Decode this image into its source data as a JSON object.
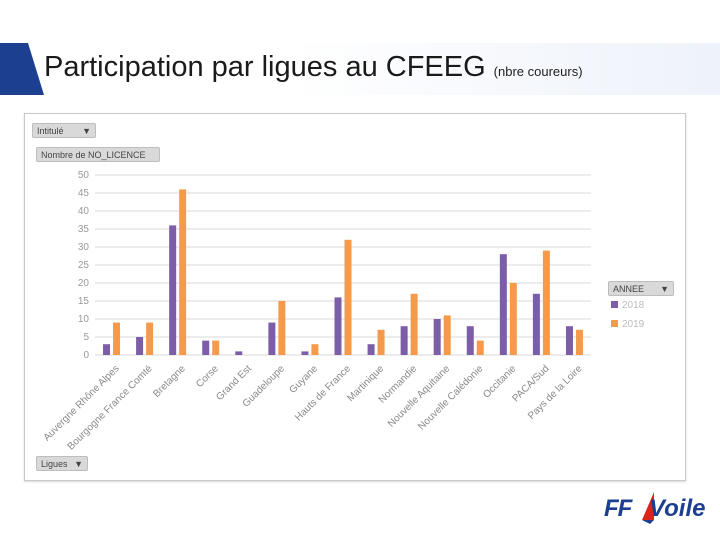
{
  "header": {
    "title": "Participation par ligues au CFEEG",
    "subtitle": "(nbre coureurs)"
  },
  "pivot": {
    "filter_label": "Intitulé",
    "value_label": "Nombre de NO_LICENCE",
    "axis_field": "Ligues",
    "legend_field": "ANNEE"
  },
  "chart_data": {
    "type": "bar",
    "title": "",
    "xlabel": "",
    "ylabel": "",
    "ylim": [
      0,
      50
    ],
    "yticks": [
      0,
      5,
      10,
      15,
      20,
      25,
      30,
      35,
      40,
      45,
      50
    ],
    "categories": [
      "Auvergne Rhône Alpes",
      "Bourgogne France Comté",
      "Bretagne",
      "Corse",
      "Grand Est",
      "Guadeloupe",
      "Guyane",
      "Hauts de France",
      "Martinique",
      "Normandie",
      "Nouvelle Aquitaine",
      "Nouvelle Calédonie",
      "Occitanie",
      "PACA/Sud",
      "Pays de la Loire"
    ],
    "series": [
      {
        "name": "2018",
        "color": "#7b5ea7",
        "values": [
          3,
          5,
          36,
          4,
          1,
          9,
          1,
          16,
          3,
          8,
          10,
          8,
          28,
          17,
          8
        ]
      },
      {
        "name": "2019",
        "color": "#f59a4a",
        "values": [
          9,
          9,
          46,
          4,
          0,
          15,
          3,
          32,
          7,
          17,
          11,
          4,
          20,
          29,
          7
        ]
      }
    ],
    "gridlines": true,
    "legend_position": "right"
  },
  "logo": {
    "text_ff": "FF",
    "text_voile": "Voile"
  }
}
